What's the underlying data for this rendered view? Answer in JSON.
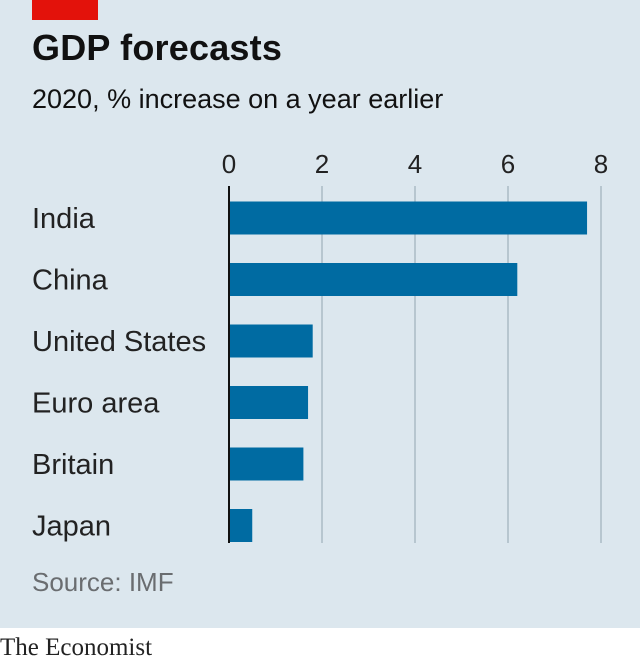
{
  "header": {
    "title": "GDP forecasts",
    "subtitle": "2020, % increase on a year earlier"
  },
  "footer": {
    "source": "Source: IMF",
    "brand": "The Economist"
  },
  "colors": {
    "background": "#dce7ee",
    "bar": "#006ba2",
    "tag": "#e3120b",
    "gridline": "#b7c6cf"
  },
  "chart_data": {
    "type": "bar",
    "orientation": "horizontal",
    "categories": [
      "India",
      "China",
      "United States",
      "Euro area",
      "Britain",
      "Japan"
    ],
    "values": [
      7.7,
      6.2,
      1.8,
      1.7,
      1.6,
      0.5
    ],
    "xticks": [
      "0",
      "2",
      "4",
      "6",
      "8"
    ],
    "xlim": [
      0,
      8
    ],
    "grid": true,
    "legend": "none"
  }
}
